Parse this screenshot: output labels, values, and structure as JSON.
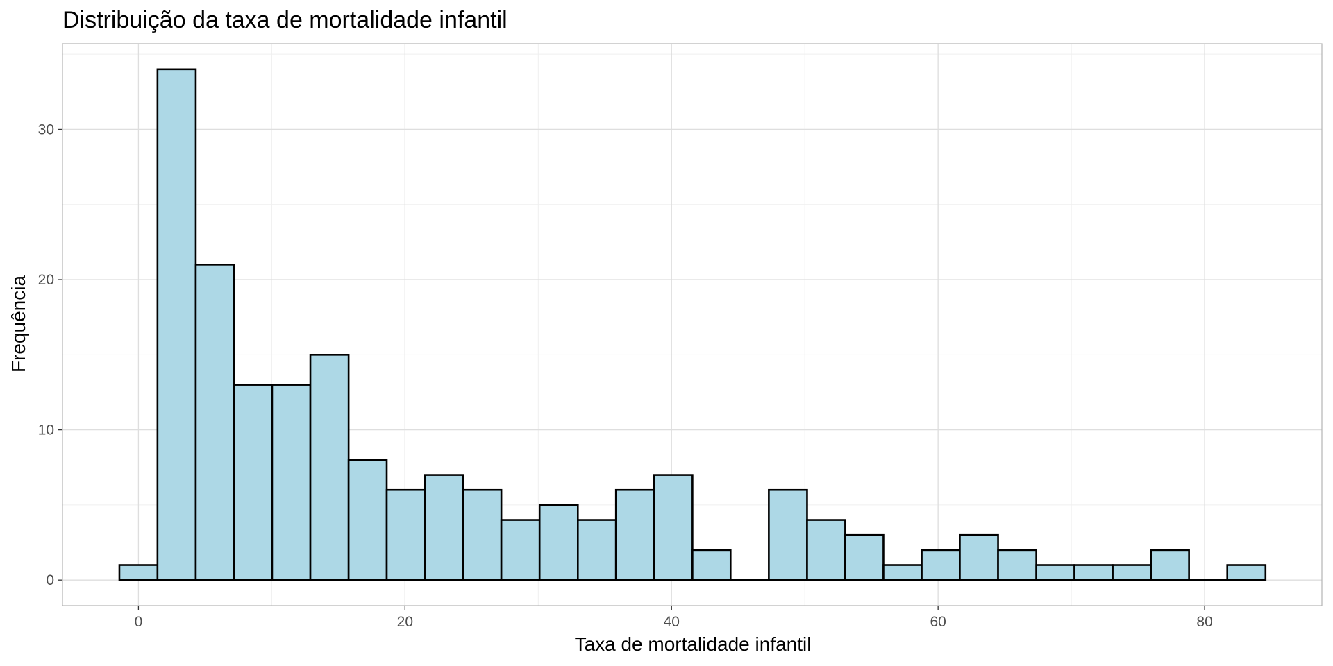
{
  "chart_data": {
    "type": "bar",
    "subtype": "histogram",
    "title": "Distribuição da taxa de mortalidade infantil",
    "xlabel": "Taxa de mortalidade infantil",
    "ylabel": "Frequência",
    "bin_width": 2.87,
    "bins": [
      {
        "x0": -1.43,
        "x1": 1.43,
        "count": 1
      },
      {
        "x0": 1.43,
        "x1": 4.3,
        "count": 34
      },
      {
        "x0": 4.3,
        "x1": 7.17,
        "count": 21
      },
      {
        "x0": 7.17,
        "x1": 10.03,
        "count": 13
      },
      {
        "x0": 10.03,
        "x1": 12.9,
        "count": 13
      },
      {
        "x0": 12.9,
        "x1": 15.77,
        "count": 15
      },
      {
        "x0": 15.77,
        "x1": 18.63,
        "count": 8
      },
      {
        "x0": 18.63,
        "x1": 21.5,
        "count": 6
      },
      {
        "x0": 21.5,
        "x1": 24.37,
        "count": 7
      },
      {
        "x0": 24.37,
        "x1": 27.23,
        "count": 6
      },
      {
        "x0": 27.23,
        "x1": 30.1,
        "count": 4
      },
      {
        "x0": 30.1,
        "x1": 32.97,
        "count": 5
      },
      {
        "x0": 32.97,
        "x1": 35.83,
        "count": 4
      },
      {
        "x0": 35.83,
        "x1": 38.7,
        "count": 6
      },
      {
        "x0": 38.7,
        "x1": 41.57,
        "count": 7
      },
      {
        "x0": 41.57,
        "x1": 44.43,
        "count": 2
      },
      {
        "x0": 44.43,
        "x1": 47.3,
        "count": 0
      },
      {
        "x0": 47.3,
        "x1": 50.17,
        "count": 6
      },
      {
        "x0": 50.17,
        "x1": 53.03,
        "count": 4
      },
      {
        "x0": 53.03,
        "x1": 55.9,
        "count": 3
      },
      {
        "x0": 55.9,
        "x1": 58.77,
        "count": 1
      },
      {
        "x0": 58.77,
        "x1": 61.63,
        "count": 2
      },
      {
        "x0": 61.63,
        "x1": 64.5,
        "count": 3
      },
      {
        "x0": 64.5,
        "x1": 67.37,
        "count": 2
      },
      {
        "x0": 67.37,
        "x1": 70.23,
        "count": 1
      },
      {
        "x0": 70.23,
        "x1": 73.1,
        "count": 1
      },
      {
        "x0": 73.1,
        "x1": 75.97,
        "count": 1
      },
      {
        "x0": 75.97,
        "x1": 78.83,
        "count": 2
      },
      {
        "x0": 78.83,
        "x1": 81.7,
        "count": 0
      },
      {
        "x0": 81.7,
        "x1": 84.57,
        "count": 1
      }
    ],
    "xlim": [
      -5.7,
      88.8
    ],
    "ylim": [
      -1.7,
      35.7
    ],
    "x_ticks": [
      0,
      20,
      40,
      60,
      80
    ],
    "y_ticks": [
      0,
      10,
      20,
      30
    ],
    "x_minor_ticks": [
      10,
      30,
      50,
      70
    ],
    "y_minor_ticks": [
      5,
      15,
      25,
      35
    ],
    "grid": true,
    "colors": {
      "bar_fill": "#ADD8E6",
      "bar_stroke": "#000000",
      "grid_major": "#DEDEDE",
      "grid_minor": "#EFEFEF",
      "panel_border": "#B3B3B3",
      "tick_text": "#4D4D4D"
    }
  }
}
